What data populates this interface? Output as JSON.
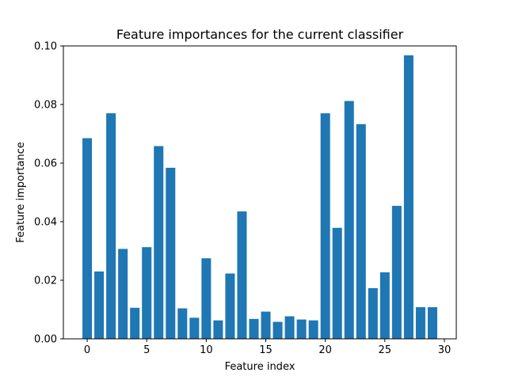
{
  "chart_data": {
    "type": "bar",
    "title": "Feature importances for the current classifier",
    "xlabel": "Feature index",
    "ylabel": "Feature importance",
    "x": [
      0,
      1,
      2,
      3,
      4,
      5,
      6,
      7,
      8,
      9,
      10,
      11,
      12,
      13,
      14,
      15,
      16,
      17,
      18,
      19,
      20,
      21,
      22,
      23,
      24,
      25,
      26,
      27,
      28,
      29
    ],
    "values": [
      0.0685,
      0.023,
      0.077,
      0.0307,
      0.0106,
      0.0313,
      0.0658,
      0.0584,
      0.0104,
      0.0072,
      0.0275,
      0.0063,
      0.0223,
      0.0435,
      0.0068,
      0.0093,
      0.0058,
      0.0077,
      0.0066,
      0.0063,
      0.077,
      0.0379,
      0.0812,
      0.0733,
      0.0173,
      0.0227,
      0.0454,
      0.0968,
      0.0108,
      0.0108
    ],
    "xlim": [
      -2.0,
      31.0
    ],
    "ylim": [
      0.0,
      0.1
    ],
    "xticks": [
      0,
      5,
      10,
      15,
      20,
      25,
      30
    ],
    "xtick_labels": [
      "0",
      "5",
      "10",
      "15",
      "20",
      "25",
      "30"
    ],
    "yticks": [
      0.0,
      0.02,
      0.04,
      0.06,
      0.08,
      0.1
    ],
    "ytick_labels": [
      "0.00",
      "0.02",
      "0.04",
      "0.06",
      "0.08",
      "0.10"
    ],
    "bar_color": "#1f77b4",
    "grid": false,
    "legend": false
  }
}
